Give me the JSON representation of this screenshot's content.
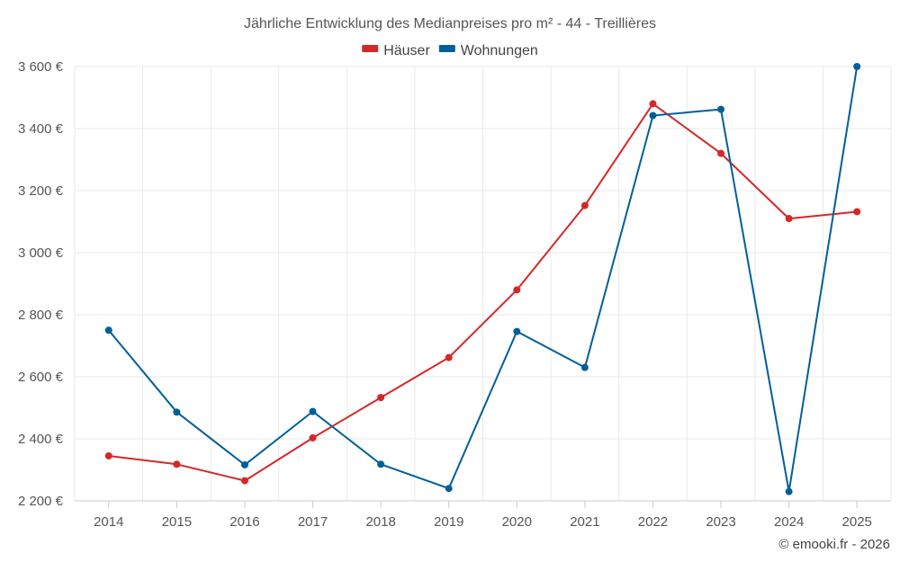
{
  "chart_data": {
    "type": "line",
    "title": "Jährliche Entwicklung des Medianpreises pro m² - 44 - Treillières",
    "categories": [
      "2014",
      "2015",
      "2016",
      "2017",
      "2018",
      "2019",
      "2020",
      "2021",
      "2022",
      "2023",
      "2024",
      "2025"
    ],
    "series": [
      {
        "name": "Häuser",
        "color": "#d62728",
        "values": [
          2345,
          2318,
          2265,
          2403,
          2533,
          2662,
          2880,
          3152,
          3480,
          3320,
          3110,
          3132
        ]
      },
      {
        "name": "Wohnungen",
        "color": "#005f99",
        "values": [
          2750,
          2486,
          2316,
          2488,
          2318,
          2240,
          2746,
          2630,
          3442,
          3462,
          2230,
          3600
        ]
      }
    ],
    "ylim": [
      2200,
      3600
    ],
    "yticks": [
      {
        "value": 2200,
        "label": "2 200 €"
      },
      {
        "value": 2400,
        "label": "2 400 €"
      },
      {
        "value": 2600,
        "label": "2 600 €"
      },
      {
        "value": 2800,
        "label": "2 800 €"
      },
      {
        "value": 3000,
        "label": "3 000 €"
      },
      {
        "value": 3200,
        "label": "3 200 €"
      },
      {
        "value": 3400,
        "label": "3 400 €"
      },
      {
        "value": 3600,
        "label": "3 600 €"
      }
    ],
    "xlabel": "",
    "ylabel": "",
    "grid": true,
    "legend_position": "top-center"
  },
  "credit": "© emooki.fr - 2026"
}
